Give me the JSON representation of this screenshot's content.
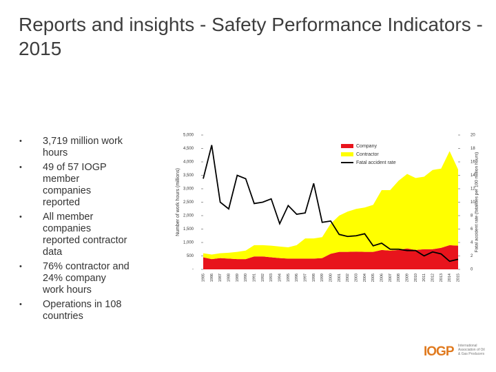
{
  "header": {
    "title": "Reports and insights - Safety Performance Indicators - 2015"
  },
  "bullets": [
    "3,719 million work hours",
    "49 of 57 IOGP member companies reported",
    "All member companies reported contractor data",
    "76% contractor and 24% company work hours",
    "Operations in 108 countries"
  ],
  "logo": {
    "mark": "IOGP",
    "text": "International Association of Oil & Gas Producers"
  },
  "chart_data": {
    "type": "stacked_area_line",
    "y_label": "Number of work hours (millions)",
    "y2_label": "Fatal accident rate (fatalities per 100 million hours)",
    "categories": [
      "1985",
      "1986",
      "1987",
      "1988",
      "1989",
      "1990",
      "1991",
      "1992",
      "1993",
      "1994",
      "1995",
      "1996",
      "1997",
      "1998",
      "1999",
      "2000",
      "2001",
      "2002",
      "2003",
      "2004",
      "2005",
      "2006",
      "2007",
      "2008",
      "2009",
      "2010",
      "2011",
      "2012",
      "2013",
      "2014",
      "2015"
    ],
    "series": [
      {
        "name": "Company",
        "color": "#e8141c",
        "kind": "area",
        "values": [
          450,
          380,
          420,
          400,
          380,
          380,
          480,
          480,
          450,
          420,
          400,
          400,
          400,
          400,
          420,
          580,
          650,
          650,
          660,
          650,
          650,
          720,
          700,
          720,
          780,
          720,
          750,
          750,
          800,
          900,
          880
        ]
      },
      {
        "name": "Contractor",
        "color": "#ffff00",
        "kind": "area",
        "values": [
          150,
          170,
          180,
          220,
          270,
          320,
          420,
          420,
          430,
          430,
          420,
          500,
          750,
          750,
          780,
          1120,
          1350,
          1500,
          1590,
          1650,
          1750,
          2230,
          2250,
          2580,
          2770,
          2680,
          2700,
          2950,
          2950,
          3500,
          2839
        ]
      },
      {
        "name": "Fatal accident rate",
        "color": "#000000",
        "kind": "line",
        "axis": "y2",
        "values": [
          13.5,
          18.5,
          10,
          9,
          14,
          13.5,
          9.8,
          10,
          10.5,
          6.8,
          9.5,
          8.2,
          8.4,
          12.8,
          7,
          7.2,
          5.2,
          4.9,
          5,
          5.3,
          3.5,
          3.9,
          3,
          3,
          2.8,
          2.8,
          2,
          2.6,
          2.3,
          1.2,
          1.5
        ]
      }
    ],
    "ylim": [
      0,
      5000
    ],
    "yticks": [
      {
        "value": 0,
        "label": "-"
      },
      500,
      {
        "value": 1000,
        "label": "1,000"
      },
      {
        "value": 1500,
        "label": "1,500"
      },
      {
        "value": 2000,
        "label": "2,000"
      },
      {
        "value": 2500,
        "label": "2,500"
      },
      {
        "value": 3000,
        "label": "3,000"
      },
      {
        "value": 3500,
        "label": "3,500"
      },
      {
        "value": 4000,
        "label": "4,000"
      },
      {
        "value": 4500,
        "label": "4,500"
      },
      {
        "value": 5000,
        "label": "5,000"
      }
    ],
    "y2lim": [
      0,
      20
    ],
    "y2ticks": [
      0,
      2,
      4,
      6,
      8,
      10,
      12,
      14,
      16,
      18,
      20
    ],
    "legend": "upper-right"
  }
}
